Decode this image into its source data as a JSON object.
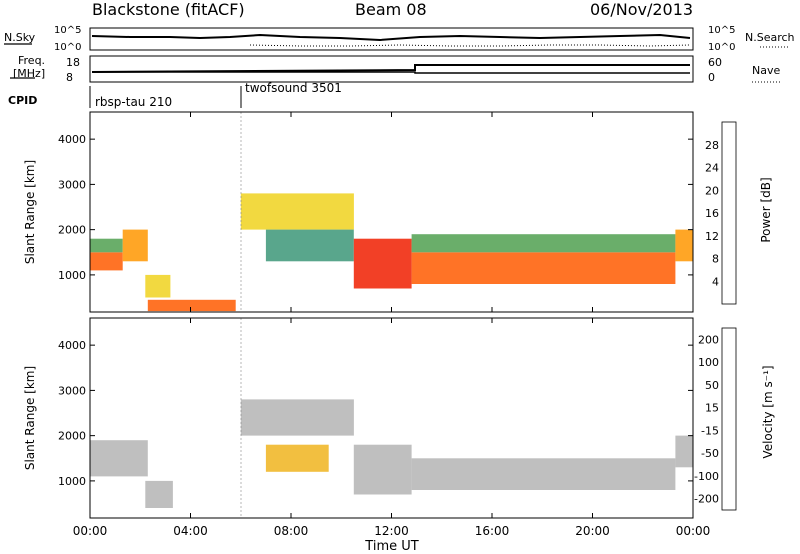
{
  "header": {
    "site": "Blackstone (fitACF)",
    "beam": "Beam 08",
    "date": "06/Nov/2013"
  },
  "status_panel": {
    "nsky_label": "N.Sky",
    "nsky_ticks": [
      "10^5",
      "10^0"
    ],
    "nsearch_label": "N.Search",
    "nsearch_ticks": [
      "10^5",
      "10^0"
    ],
    "freq_label_1": "Freq.",
    "freq_label_2": "[MHz]",
    "freq_ticks": [
      "18",
      "8"
    ],
    "nave_label": "Nave",
    "nave_ticks": [
      "60",
      "0"
    ],
    "cpid_label": "CPID",
    "programs": [
      {
        "name": "rbsp-tau 210",
        "start_hour": 0
      },
      {
        "name": "twofsound 3501",
        "start_hour": 6
      }
    ]
  },
  "colors": {
    "power_scale": [
      "#0a1ef0",
      "#1e3ca0",
      "#2d6ea0",
      "#3c9678",
      "#50a050",
      "#9ccf2e",
      "#f0d21e",
      "#ff9600",
      "#ff5a00",
      "#f01e00",
      "#e60000"
    ],
    "velocity_scale": [
      "#e60000",
      "#ff5000",
      "#ff8c00",
      "#f0b41e",
      "#c8c8b4",
      "#b4b4b4",
      "#8cd228",
      "#3ca03c",
      "#2d6ea0",
      "#1e3cb4"
    ]
  },
  "chart_data": [
    {
      "type": "heatmap",
      "name_panel": "power",
      "ylabel": "Slant Range [km]",
      "ylim": [
        180,
        4600
      ],
      "xlim": [
        0,
        24
      ],
      "yticks": [
        "1000",
        "2000",
        "3000",
        "4000"
      ],
      "colorbar_label": "Power [dB]",
      "colorbar_ticks": [
        "4",
        "8",
        "12",
        "16",
        "20",
        "24",
        "28"
      ],
      "colorbar_range": [
        0,
        32
      ],
      "bands": [
        {
          "start_hour": 0.0,
          "end_hour": 1.3,
          "range_km": [
            1100,
            1500
          ],
          "value": 26
        },
        {
          "start_hour": 0.0,
          "end_hour": 1.3,
          "range_km": [
            1500,
            1800
          ],
          "value": 14
        },
        {
          "start_hour": 1.3,
          "end_hour": 2.3,
          "range_km": [
            1300,
            2000
          ],
          "value": 22
        },
        {
          "start_hour": 2.2,
          "end_hour": 3.2,
          "range_km": [
            500,
            1000
          ],
          "value": 18
        },
        {
          "start_hour": 2.3,
          "end_hour": 5.8,
          "range_km": [
            200,
            450
          ],
          "value": 24
        },
        {
          "start_hour": 6.0,
          "end_hour": 10.5,
          "range_km": [
            2000,
            2800
          ],
          "value": 20
        },
        {
          "start_hour": 7.0,
          "end_hour": 10.5,
          "range_km": [
            1300,
            2000
          ],
          "value": 10
        },
        {
          "start_hour": 10.5,
          "end_hour": 12.8,
          "range_km": [
            700,
            1800
          ],
          "value": 28
        },
        {
          "start_hour": 12.8,
          "end_hour": 23.3,
          "range_km": [
            800,
            1500
          ],
          "value": 26
        },
        {
          "start_hour": 12.8,
          "end_hour": 23.3,
          "range_km": [
            1500,
            1900
          ],
          "value": 14
        },
        {
          "start_hour": 23.3,
          "end_hour": 24.0,
          "range_km": [
            1300,
            2000
          ],
          "value": 22
        }
      ]
    },
    {
      "type": "heatmap",
      "name_panel": "velocity",
      "ylabel": "Slant Range [km]",
      "xlabel": "Time UT",
      "ylim": [
        180,
        4600
      ],
      "xlim": [
        0,
        24
      ],
      "yticks": [
        "1000",
        "2000",
        "3000",
        "4000"
      ],
      "xticks": [
        "00:00",
        "04:00",
        "08:00",
        "12:00",
        "16:00",
        "20:00",
        "00:00"
      ],
      "colorbar_label": "Velocity [m s⁻¹]",
      "colorbar_ticks": [
        "200",
        "100",
        "50",
        "15",
        "-15",
        "-50",
        "-100",
        "-200"
      ],
      "colorbar_range": [
        -250,
        250
      ],
      "bands": [
        {
          "start_hour": 0.0,
          "end_hour": 2.3,
          "range_km": [
            1100,
            1900
          ],
          "value": 0
        },
        {
          "start_hour": 2.2,
          "end_hour": 3.3,
          "range_km": [
            400,
            1000
          ],
          "value": 0
        },
        {
          "start_hour": 6.0,
          "end_hour": 10.5,
          "range_km": [
            2000,
            2800
          ],
          "value": 0
        },
        {
          "start_hour": 7.0,
          "end_hour": 9.5,
          "range_km": [
            1200,
            1800
          ],
          "value": -60
        },
        {
          "start_hour": 10.5,
          "end_hour": 12.8,
          "range_km": [
            700,
            1800
          ],
          "value": 20
        },
        {
          "start_hour": 12.8,
          "end_hour": 23.3,
          "range_km": [
            800,
            1500
          ],
          "value": 0
        },
        {
          "start_hour": 23.3,
          "end_hour": 24.0,
          "range_km": [
            1300,
            2000
          ],
          "value": 0
        }
      ]
    }
  ]
}
